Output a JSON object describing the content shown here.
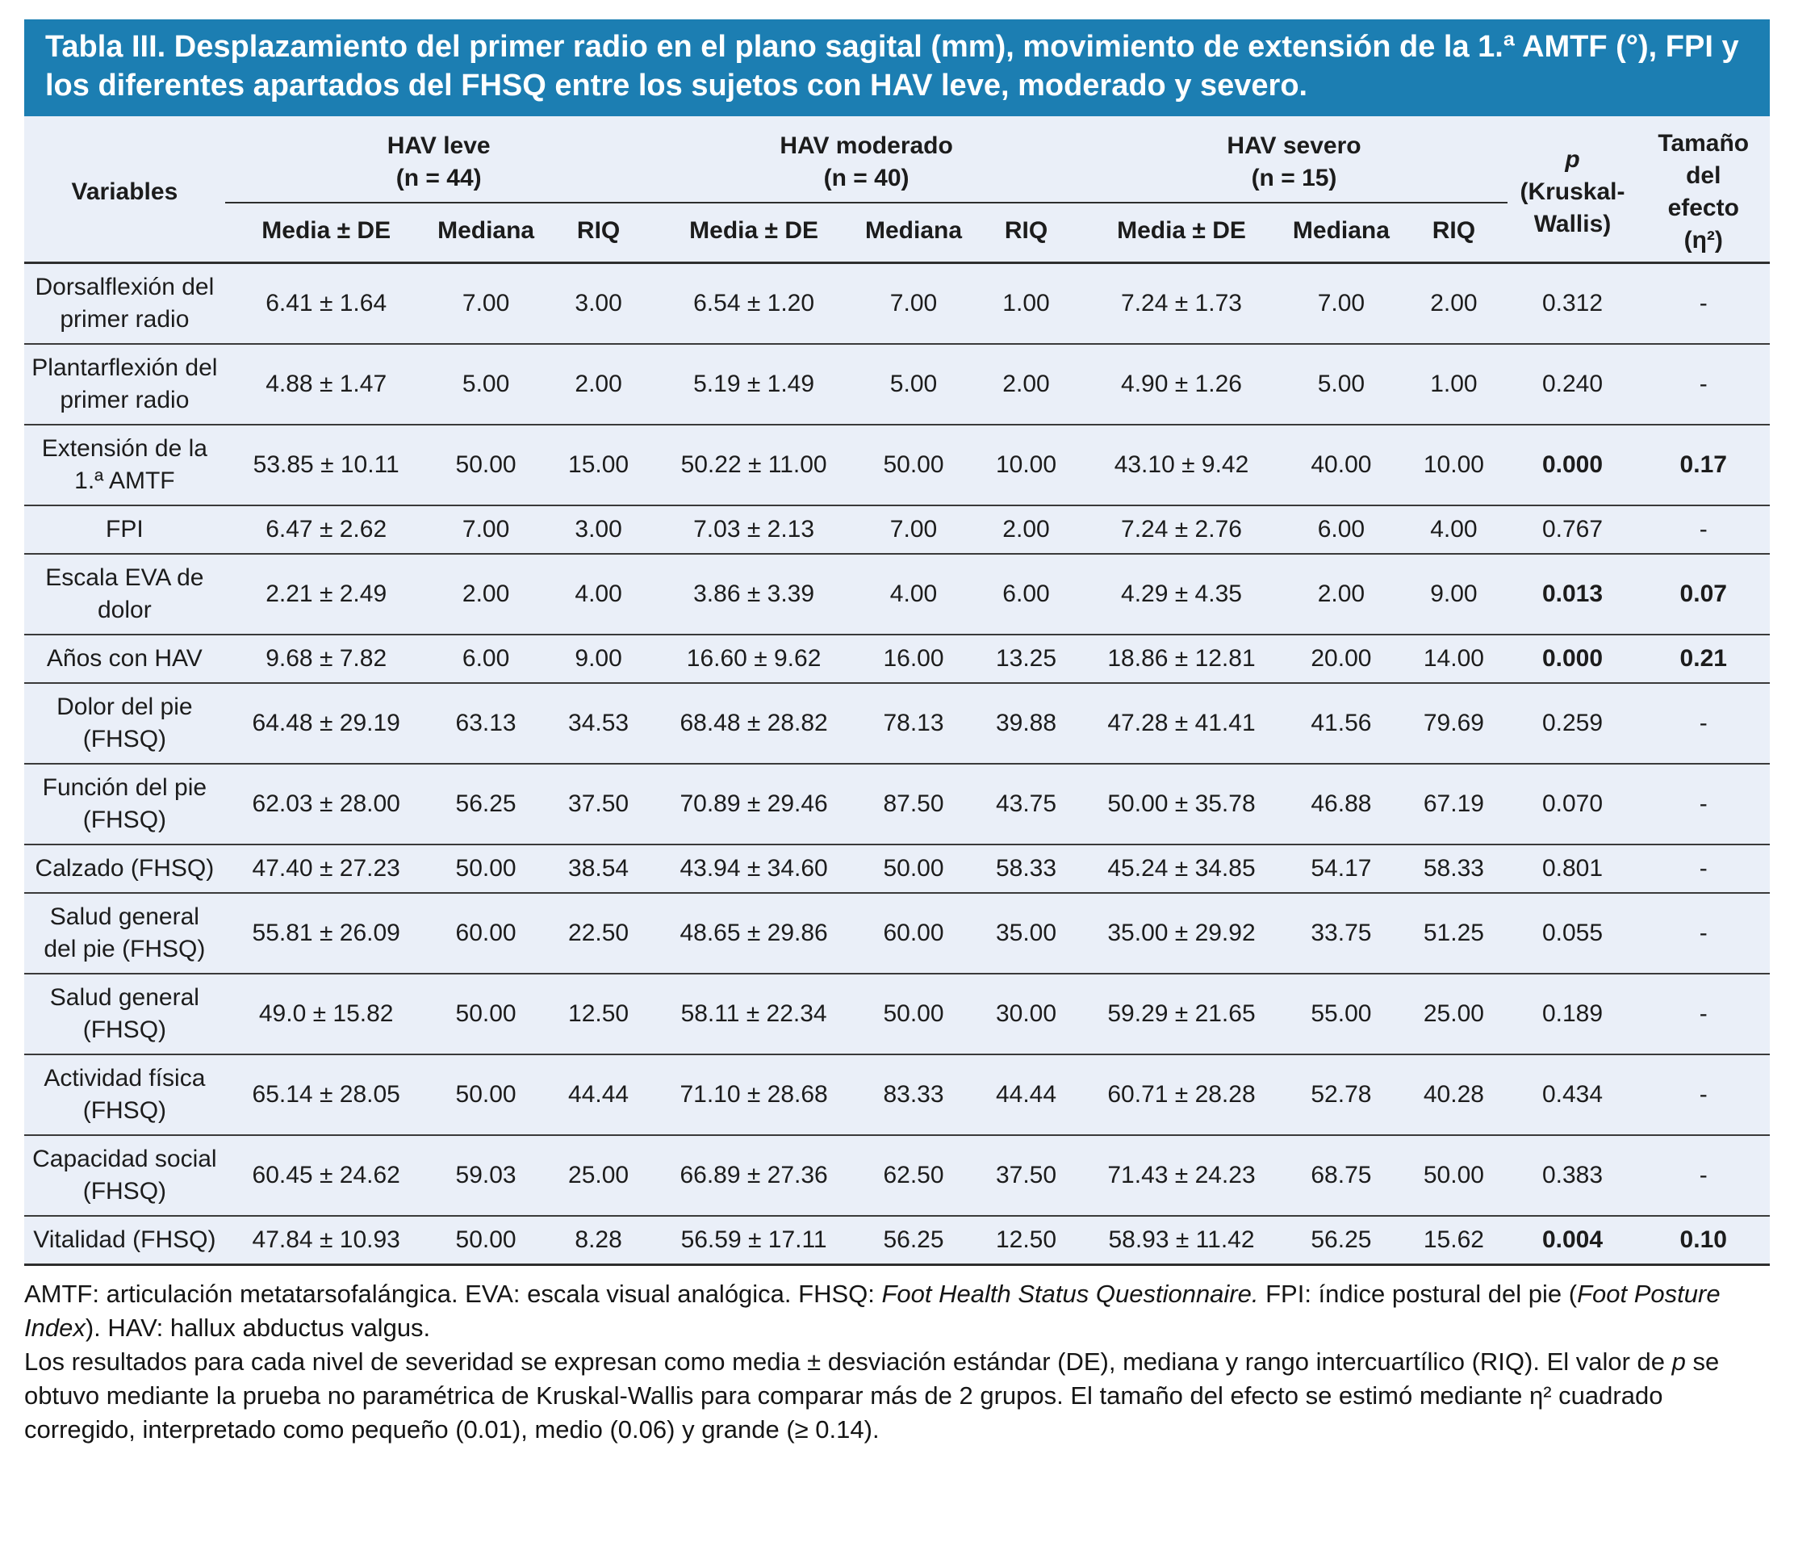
{
  "title": "Tabla III. Desplazamiento del primer radio en el plano sagital (mm), movimiento de extensión de la 1.ª AMTF (°), FPI y los diferentes apartados del FHSQ entre los sujetos con HAV leve, moderado y severo.",
  "header": {
    "variables_label": "Variables",
    "groups": [
      {
        "name": "HAV leve",
        "n": "(n = 44)"
      },
      {
        "name": "HAV moderado",
        "n": "(n = 40)"
      },
      {
        "name": "HAV severo",
        "n": "(n = 15)"
      }
    ],
    "subcolumns": [
      "Media ± DE",
      "Mediana",
      "RIQ"
    ],
    "p_symbol": "p",
    "p_rest": "(Kruskal-Wallis)",
    "effect_label": "Tamaño del efecto",
    "effect_symbol": "(η²)"
  },
  "rows": [
    {
      "label": "Dorsalflexión del primer radio",
      "cells": [
        "6.41 ± 1.64",
        "7.00",
        "3.00",
        "6.54 ± 1.20",
        "7.00",
        "1.00",
        "7.24 ± 1.73",
        "7.00",
        "2.00"
      ],
      "p": "0.312",
      "effect": "-",
      "significant": false
    },
    {
      "label": "Plantarflexión del primer radio",
      "cells": [
        "4.88 ± 1.47",
        "5.00",
        "2.00",
        "5.19 ± 1.49",
        "5.00",
        "2.00",
        "4.90 ± 1.26",
        "5.00",
        "1.00"
      ],
      "p": "0.240",
      "effect": "-",
      "significant": false
    },
    {
      "label": "Extensión de la 1.ª AMTF",
      "cells": [
        "53.85 ± 10.11",
        "50.00",
        "15.00",
        "50.22 ± 11.00",
        "50.00",
        "10.00",
        "43.10 ± 9.42",
        "40.00",
        "10.00"
      ],
      "p": "0.000",
      "effect": "0.17",
      "significant": true
    },
    {
      "label": "FPI",
      "cells": [
        "6.47 ± 2.62",
        "7.00",
        "3.00",
        "7.03 ± 2.13",
        "7.00",
        "2.00",
        "7.24 ± 2.76",
        "6.00",
        "4.00"
      ],
      "p": "0.767",
      "effect": "-",
      "significant": false
    },
    {
      "label": "Escala EVA de dolor",
      "cells": [
        "2.21 ± 2.49",
        "2.00",
        "4.00",
        "3.86 ± 3.39",
        "4.00",
        "6.00",
        "4.29 ± 4.35",
        "2.00",
        "9.00"
      ],
      "p": "0.013",
      "effect": "0.07",
      "significant": true
    },
    {
      "label": "Años con HAV",
      "cells": [
        "9.68 ± 7.82",
        "6.00",
        "9.00",
        "16.60 ± 9.62",
        "16.00",
        "13.25",
        "18.86 ± 12.81",
        "20.00",
        "14.00"
      ],
      "p": "0.000",
      "effect": "0.21",
      "significant": true
    },
    {
      "label": "Dolor del pie (FHSQ)",
      "cells": [
        "64.48 ± 29.19",
        "63.13",
        "34.53",
        "68.48 ± 28.82",
        "78.13",
        "39.88",
        "47.28 ± 41.41",
        "41.56",
        "79.69"
      ],
      "p": "0.259",
      "effect": "-",
      "significant": false
    },
    {
      "label": "Función del pie (FHSQ)",
      "cells": [
        "62.03 ± 28.00",
        "56.25",
        "37.50",
        "70.89 ± 29.46",
        "87.50",
        "43.75",
        "50.00 ± 35.78",
        "46.88",
        "67.19"
      ],
      "p": "0.070",
      "effect": "-",
      "significant": false
    },
    {
      "label": "Calzado (FHSQ)",
      "cells": [
        "47.40 ± 27.23",
        "50.00",
        "38.54",
        "43.94 ± 34.60",
        "50.00",
        "58.33",
        "45.24 ± 34.85",
        "54.17",
        "58.33"
      ],
      "p": "0.801",
      "effect": "-",
      "significant": false
    },
    {
      "label": "Salud general del pie (FHSQ)",
      "cells": [
        "55.81 ± 26.09",
        "60.00",
        "22.50",
        "48.65 ± 29.86",
        "60.00",
        "35.00",
        "35.00 ± 29.92",
        "33.75",
        "51.25"
      ],
      "p": "0.055",
      "effect": "-",
      "significant": false
    },
    {
      "label": "Salud general (FHSQ)",
      "cells": [
        "49.0 ± 15.82",
        "50.00",
        "12.50",
        "58.11 ± 22.34",
        "50.00",
        "30.00",
        "59.29 ± 21.65",
        "55.00",
        "25.00"
      ],
      "p": "0.189",
      "effect": "-",
      "significant": false
    },
    {
      "label": "Actividad física (FHSQ)",
      "cells": [
        "65.14 ± 28.05",
        "50.00",
        "44.44",
        "71.10 ± 28.68",
        "83.33",
        "44.44",
        "60.71 ± 28.28",
        "52.78",
        "40.28"
      ],
      "p": "0.434",
      "effect": "-",
      "significant": false
    },
    {
      "label": "Capacidad social (FHSQ)",
      "cells": [
        "60.45 ± 24.62",
        "59.03",
        "25.00",
        "66.89 ± 27.36",
        "62.50",
        "37.50",
        "71.43 ± 24.23",
        "68.75",
        "50.00"
      ],
      "p": "0.383",
      "effect": "-",
      "significant": false
    },
    {
      "label": "Vitalidad (FHSQ)",
      "cells": [
        "47.84 ± 10.93",
        "50.00",
        "8.28",
        "56.59 ± 17.11",
        "56.25",
        "12.50",
        "58.93 ± 11.42",
        "56.25",
        "15.62"
      ],
      "p": "0.004",
      "effect": "0.10",
      "significant": true
    }
  ],
  "footnotes": {
    "abbrev": {
      "seg1": "AMTF: articulación metatarsofalángica. EVA: escala visual analógica. FHSQ: ",
      "seg2": "Foot Health Status Questionnaire.",
      "seg3": " FPI: índice postural del pie (",
      "seg4": "Foot Posture Index",
      "seg5": "). HAV: hallux abductus valgus."
    },
    "methods": {
      "seg1": "Los resultados para cada nivel de severidad se expresan como media ± desviación estándar (DE), mediana y rango intercuartílico (RIQ). El valor de ",
      "seg2": "p",
      "seg3": " se obtuvo mediante la prueba no paramétrica de Kruskal-Wallis para comparar más de 2 grupos. El tamaño del efecto se estimó mediante ",
      "seg4": "η²",
      "seg5": " cuadrado corregido, interpretado como pequeño (0.01), medio (0.06) y grande (≥ 0.14)."
    }
  }
}
